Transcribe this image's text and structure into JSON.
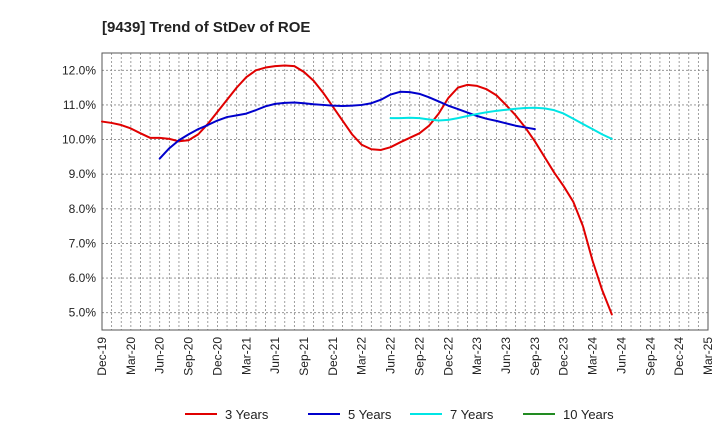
{
  "chart_data": {
    "type": "line",
    "title": "[9439]  Trend of StDev of ROE",
    "xlabel": "",
    "ylabel": "",
    "x_ticks": [
      "Dec-19",
      "Mar-20",
      "Jun-20",
      "Sep-20",
      "Dec-20",
      "Mar-21",
      "Jun-21",
      "Sep-21",
      "Dec-21",
      "Mar-22",
      "Jun-22",
      "Sep-22",
      "Dec-22",
      "Mar-23",
      "Jun-23",
      "Sep-23",
      "Dec-23",
      "Mar-24",
      "Jun-24",
      "Sep-24",
      "Dec-24",
      "Mar-25"
    ],
    "y_ticks": [
      "5.0%",
      "6.0%",
      "7.0%",
      "8.0%",
      "9.0%",
      "10.0%",
      "11.0%",
      "12.0%"
    ],
    "ylim": [
      4.5,
      12.5
    ],
    "grid": true,
    "legend_position": "bottom",
    "series": [
      {
        "name": "3 Years",
        "color": "#e00000",
        "points": [
          [
            "Dec-19",
            10.52
          ],
          [
            "Jan-20",
            10.48
          ],
          [
            "Feb-20",
            10.42
          ],
          [
            "Mar-20",
            10.32
          ],
          [
            "Apr-20",
            10.18
          ],
          [
            "May-20",
            10.05
          ],
          [
            "Jun-20",
            10.05
          ],
          [
            "Jul-20",
            10.02
          ],
          [
            "Aug-20",
            9.95
          ],
          [
            "Sep-20",
            9.98
          ],
          [
            "Oct-20",
            10.15
          ],
          [
            "Nov-20",
            10.45
          ],
          [
            "Dec-20",
            10.8
          ],
          [
            "Jan-21",
            11.15
          ],
          [
            "Feb-21",
            11.5
          ],
          [
            "Mar-21",
            11.8
          ],
          [
            "Apr-21",
            12.0
          ],
          [
            "May-21",
            12.08
          ],
          [
            "Jun-21",
            12.12
          ],
          [
            "Jul-21",
            12.14
          ],
          [
            "Aug-21",
            12.12
          ],
          [
            "Sep-21",
            11.95
          ],
          [
            "Oct-21",
            11.7
          ],
          [
            "Nov-21",
            11.35
          ],
          [
            "Dec-21",
            10.95
          ],
          [
            "Jan-22",
            10.55
          ],
          [
            "Feb-22",
            10.15
          ],
          [
            "Mar-22",
            9.85
          ],
          [
            "Apr-22",
            9.72
          ],
          [
            "May-22",
            9.7
          ],
          [
            "Jun-22",
            9.78
          ],
          [
            "Jul-22",
            9.92
          ],
          [
            "Aug-22",
            10.05
          ],
          [
            "Sep-22",
            10.18
          ],
          [
            "Oct-22",
            10.4
          ],
          [
            "Nov-22",
            10.75
          ],
          [
            "Dec-22",
            11.2
          ],
          [
            "Jan-23",
            11.5
          ],
          [
            "Feb-23",
            11.58
          ],
          [
            "Mar-23",
            11.55
          ],
          [
            "Apr-23",
            11.45
          ],
          [
            "May-23",
            11.28
          ],
          [
            "Jun-23",
            11.0
          ],
          [
            "Jul-23",
            10.7
          ],
          [
            "Aug-23",
            10.35
          ],
          [
            "Sep-23",
            9.95
          ],
          [
            "Oct-23",
            9.5
          ],
          [
            "Nov-23",
            9.05
          ],
          [
            "Dec-23",
            8.65
          ],
          [
            "Jan-24",
            8.2
          ],
          [
            "Feb-24",
            7.5
          ],
          [
            "Mar-24",
            6.5
          ],
          [
            "Apr-24",
            5.65
          ],
          [
            "May-24",
            4.95
          ]
        ]
      },
      {
        "name": "5 Years",
        "color": "#0000cc",
        "points": [
          [
            "Jun-20",
            9.45
          ],
          [
            "Jul-20",
            9.75
          ],
          [
            "Aug-20",
            9.98
          ],
          [
            "Sep-20",
            10.15
          ],
          [
            "Oct-20",
            10.3
          ],
          [
            "Nov-20",
            10.42
          ],
          [
            "Dec-20",
            10.55
          ],
          [
            "Jan-21",
            10.65
          ],
          [
            "Feb-21",
            10.7
          ],
          [
            "Mar-21",
            10.75
          ],
          [
            "Apr-21",
            10.85
          ],
          [
            "May-21",
            10.96
          ],
          [
            "Jun-21",
            11.03
          ],
          [
            "Jul-21",
            11.06
          ],
          [
            "Aug-21",
            11.07
          ],
          [
            "Sep-21",
            11.05
          ],
          [
            "Oct-21",
            11.02
          ],
          [
            "Nov-21",
            11.0
          ],
          [
            "Dec-21",
            10.98
          ],
          [
            "Jan-22",
            10.97
          ],
          [
            "Feb-22",
            10.98
          ],
          [
            "Mar-22",
            11.0
          ],
          [
            "Apr-22",
            11.05
          ],
          [
            "May-22",
            11.15
          ],
          [
            "Jun-22",
            11.3
          ],
          [
            "Jul-22",
            11.38
          ],
          [
            "Aug-22",
            11.37
          ],
          [
            "Sep-22",
            11.32
          ],
          [
            "Oct-22",
            11.22
          ],
          [
            "Nov-22",
            11.1
          ],
          [
            "Dec-22",
            10.98
          ],
          [
            "Jan-23",
            10.88
          ],
          [
            "Feb-23",
            10.78
          ],
          [
            "Mar-23",
            10.68
          ],
          [
            "Apr-23",
            10.6
          ],
          [
            "May-23",
            10.54
          ],
          [
            "Jun-23",
            10.47
          ],
          [
            "Jul-23",
            10.4
          ],
          [
            "Aug-23",
            10.35
          ],
          [
            "Sep-23",
            10.3
          ]
        ]
      },
      {
        "name": "7 Years",
        "color": "#00e5e5",
        "points": [
          [
            "Jun-22",
            10.62
          ],
          [
            "Jul-22",
            10.62
          ],
          [
            "Aug-22",
            10.63
          ],
          [
            "Sep-22",
            10.62
          ],
          [
            "Oct-22",
            10.58
          ],
          [
            "Nov-22",
            10.55
          ],
          [
            "Dec-22",
            10.57
          ],
          [
            "Jan-23",
            10.62
          ],
          [
            "Feb-23",
            10.68
          ],
          [
            "Mar-23",
            10.74
          ],
          [
            "Apr-23",
            10.79
          ],
          [
            "May-23",
            10.83
          ],
          [
            "Jun-23",
            10.86
          ],
          [
            "Jul-23",
            10.89
          ],
          [
            "Aug-23",
            10.91
          ],
          [
            "Sep-23",
            10.92
          ],
          [
            "Oct-23",
            10.9
          ],
          [
            "Nov-23",
            10.85
          ],
          [
            "Dec-23",
            10.75
          ],
          [
            "Jan-24",
            10.6
          ],
          [
            "Feb-24",
            10.45
          ],
          [
            "Mar-24",
            10.3
          ],
          [
            "Apr-24",
            10.15
          ],
          [
            "May-24",
            10.02
          ]
        ]
      },
      {
        "name": "10 Years",
        "color": "#228b22",
        "points": []
      }
    ]
  }
}
